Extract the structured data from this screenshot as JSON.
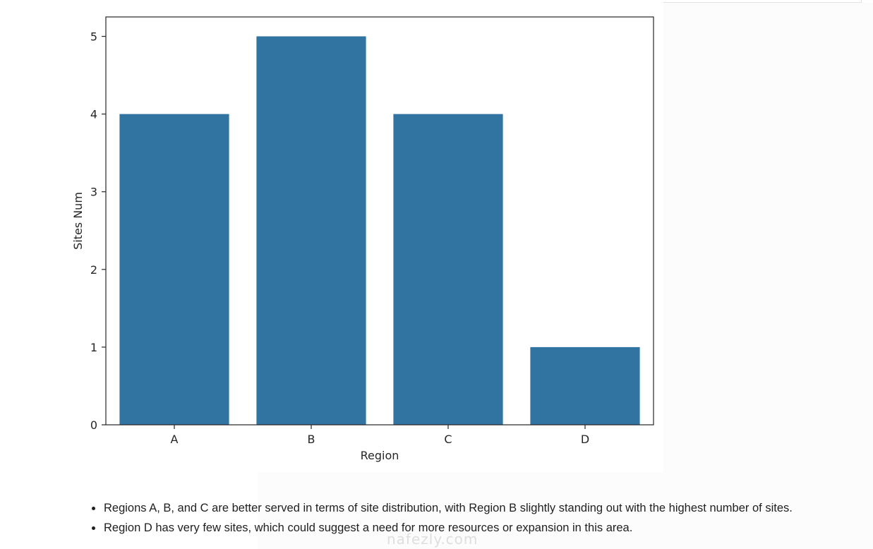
{
  "chart_data": {
    "type": "bar",
    "categories": [
      "A",
      "B",
      "C",
      "D"
    ],
    "values": [
      4,
      5,
      4,
      1
    ],
    "title": "",
    "xlabel": "Region",
    "ylabel": "Sites Num",
    "ylim": [
      0,
      5.25
    ],
    "yticks": [
      "0",
      "1",
      "2",
      "3",
      "4",
      "5"
    ],
    "bar_color": "#3274a1",
    "grid": false,
    "legend": "none"
  },
  "notes": {
    "items": [
      "Regions A, B, and C are better served in terms of site distribution, with Region B slightly standing out with the highest number of sites.",
      "Region D has very few sites, which could suggest a need for more resources or expansion in this area."
    ]
  },
  "watermark": {
    "text": "nafezly.com"
  }
}
